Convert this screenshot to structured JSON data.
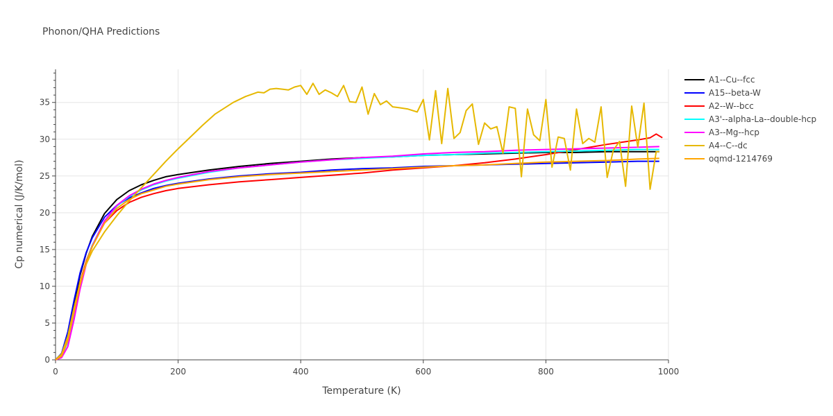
{
  "chart_data": {
    "type": "line",
    "title": "Phonon/QHA Predictions",
    "xlabel": "Temperature (K)",
    "ylabel": "Cp numerical (J/K/mol)",
    "xlim": [
      0,
      1000
    ],
    "ylim": [
      0,
      39.5
    ],
    "xticks": [
      0,
      200,
      400,
      600,
      800,
      1000
    ],
    "yticks": [
      0,
      5,
      10,
      15,
      20,
      25,
      30,
      35
    ],
    "grid": true,
    "legend_position": "right",
    "series": [
      {
        "name": "A1--Cu--fcc",
        "color": "#000000",
        "x": [
          0,
          10,
          20,
          30,
          40,
          50,
          60,
          80,
          100,
          120,
          140,
          160,
          180,
          200,
          250,
          300,
          350,
          400,
          450,
          500,
          550,
          600,
          650,
          700,
          750,
          800,
          850,
          900,
          950,
          985
        ],
        "y": [
          0,
          0.8,
          3.5,
          7.5,
          11.5,
          14.5,
          16.8,
          19.9,
          21.8,
          23.0,
          23.8,
          24.4,
          24.9,
          25.2,
          25.8,
          26.3,
          26.7,
          27.0,
          27.3,
          27.5,
          27.6,
          27.8,
          27.9,
          28.0,
          28.1,
          28.2,
          28.2,
          28.3,
          28.3,
          28.3
        ]
      },
      {
        "name": "A15--beta-W",
        "color": "#0000ff",
        "x": [
          0,
          10,
          20,
          30,
          40,
          50,
          60,
          80,
          100,
          120,
          140,
          160,
          180,
          200,
          250,
          300,
          350,
          400,
          450,
          500,
          550,
          600,
          650,
          700,
          750,
          800,
          850,
          900,
          950,
          985
        ],
        "y": [
          0,
          0.9,
          3.8,
          8.0,
          11.8,
          14.6,
          16.6,
          19.4,
          21.0,
          22.0,
          22.7,
          23.3,
          23.7,
          24.0,
          24.6,
          25.0,
          25.3,
          25.5,
          25.8,
          26.0,
          26.1,
          26.3,
          26.4,
          26.5,
          26.6,
          26.7,
          26.8,
          26.9,
          27.0,
          27.0
        ]
      },
      {
        "name": "A2--W--bcc",
        "color": "#ff0000",
        "x": [
          0,
          10,
          20,
          30,
          40,
          50,
          60,
          80,
          100,
          120,
          140,
          160,
          180,
          200,
          250,
          300,
          350,
          400,
          450,
          500,
          550,
          600,
          650,
          700,
          750,
          800,
          850,
          900,
          950,
          970,
          980,
          990
        ],
        "y": [
          0,
          0.6,
          2.8,
          6.8,
          10.5,
          13.4,
          15.6,
          18.6,
          20.3,
          21.4,
          22.1,
          22.6,
          23.0,
          23.3,
          23.8,
          24.2,
          24.5,
          24.8,
          25.1,
          25.4,
          25.8,
          26.1,
          26.4,
          26.8,
          27.3,
          27.9,
          28.6,
          29.3,
          29.9,
          30.2,
          30.7,
          30.2
        ]
      },
      {
        "name": "A3'--alpha-La--double-hcp",
        "color": "#00ffff",
        "x": [
          0,
          10,
          20,
          30,
          40,
          50,
          60,
          80,
          100,
          120,
          140,
          160,
          180,
          200,
          250,
          300,
          350,
          400,
          450,
          500,
          550,
          600,
          650,
          700,
          750,
          800,
          850,
          900,
          950,
          985
        ],
        "y": [
          0,
          0.5,
          2.4,
          6.0,
          10.0,
          13.2,
          15.6,
          18.9,
          20.9,
          22.2,
          23.1,
          23.8,
          24.3,
          24.7,
          25.5,
          26.1,
          26.5,
          26.9,
          27.2,
          27.4,
          27.6,
          27.8,
          27.9,
          28.1,
          28.2,
          28.3,
          28.4,
          28.5,
          28.6,
          28.6
        ]
      },
      {
        "name": "A3--Mg--hcp",
        "color": "#ff00ff",
        "x": [
          0,
          10,
          20,
          30,
          40,
          50,
          60,
          80,
          100,
          120,
          140,
          160,
          180,
          200,
          250,
          300,
          350,
          400,
          450,
          500,
          550,
          600,
          650,
          700,
          750,
          800,
          850,
          900,
          950,
          985
        ],
        "y": [
          0,
          0.3,
          1.8,
          5.4,
          9.6,
          13.0,
          15.5,
          18.9,
          21.0,
          22.3,
          23.2,
          23.9,
          24.4,
          24.8,
          25.6,
          26.1,
          26.5,
          26.9,
          27.2,
          27.5,
          27.7,
          28.0,
          28.2,
          28.3,
          28.5,
          28.6,
          28.7,
          28.8,
          28.9,
          29.0
        ]
      },
      {
        "name": "A4--C--dc",
        "color": "#e6b800",
        "x": [
          0,
          10,
          20,
          30,
          40,
          50,
          60,
          80,
          100,
          120,
          140,
          160,
          180,
          200,
          220,
          240,
          260,
          290,
          310,
          330,
          340,
          350,
          360,
          370,
          380,
          390,
          400,
          410,
          420,
          430,
          440,
          450,
          460,
          470,
          480,
          490,
          500,
          510,
          520,
          530,
          540,
          550,
          560,
          575,
          590,
          600,
          610,
          620,
          630,
          640,
          650,
          660,
          670,
          680,
          690,
          700,
          710,
          720,
          730,
          740,
          750,
          760,
          770,
          780,
          790,
          800,
          810,
          820,
          830,
          840,
          850,
          860,
          870,
          880,
          890,
          900,
          910,
          920,
          930,
          940,
          950,
          960,
          970,
          980,
          985
        ],
        "y": [
          0,
          0.8,
          3.2,
          7.0,
          10.5,
          13.0,
          14.8,
          17.4,
          19.6,
          21.6,
          23.4,
          25.2,
          27.0,
          28.7,
          30.3,
          31.9,
          33.4,
          35.0,
          35.8,
          36.4,
          36.3,
          36.8,
          36.9,
          36.8,
          36.7,
          37.1,
          37.3,
          36.1,
          37.6,
          36.1,
          36.7,
          36.3,
          35.8,
          37.3,
          35.1,
          35.0,
          37.1,
          33.4,
          36.2,
          34.7,
          35.2,
          34.4,
          34.3,
          34.1,
          33.7,
          35.4,
          29.9,
          36.6,
          29.4,
          36.9,
          30.1,
          30.9,
          33.9,
          34.8,
          29.3,
          32.2,
          31.4,
          31.7,
          28.1,
          34.4,
          34.2,
          24.9,
          34.1,
          30.6,
          29.8,
          35.4,
          26.2,
          30.3,
          30.1,
          25.8,
          34.1,
          29.4,
          30.1,
          29.6,
          34.4,
          24.8,
          28.5,
          29.7,
          23.6,
          34.5,
          28.9,
          34.9,
          23.2,
          28.3,
          28.3
        ]
      },
      {
        "name": "oqmd-1214769",
        "color": "#ffa500",
        "x": [
          0,
          10,
          20,
          30,
          40,
          50,
          60,
          80,
          100,
          120,
          140,
          160,
          180,
          200,
          250,
          300,
          350,
          400,
          450,
          500,
          550,
          600,
          650,
          700,
          750,
          800,
          850,
          900,
          950,
          985
        ],
        "y": [
          0,
          0.5,
          2.6,
          6.4,
          10.2,
          13.2,
          15.4,
          18.6,
          20.6,
          21.8,
          22.6,
          23.1,
          23.6,
          23.9,
          24.5,
          24.9,
          25.2,
          25.4,
          25.6,
          25.8,
          26.0,
          26.2,
          26.4,
          26.5,
          26.7,
          26.9,
          27.0,
          27.1,
          27.3,
          27.4
        ]
      }
    ]
  }
}
